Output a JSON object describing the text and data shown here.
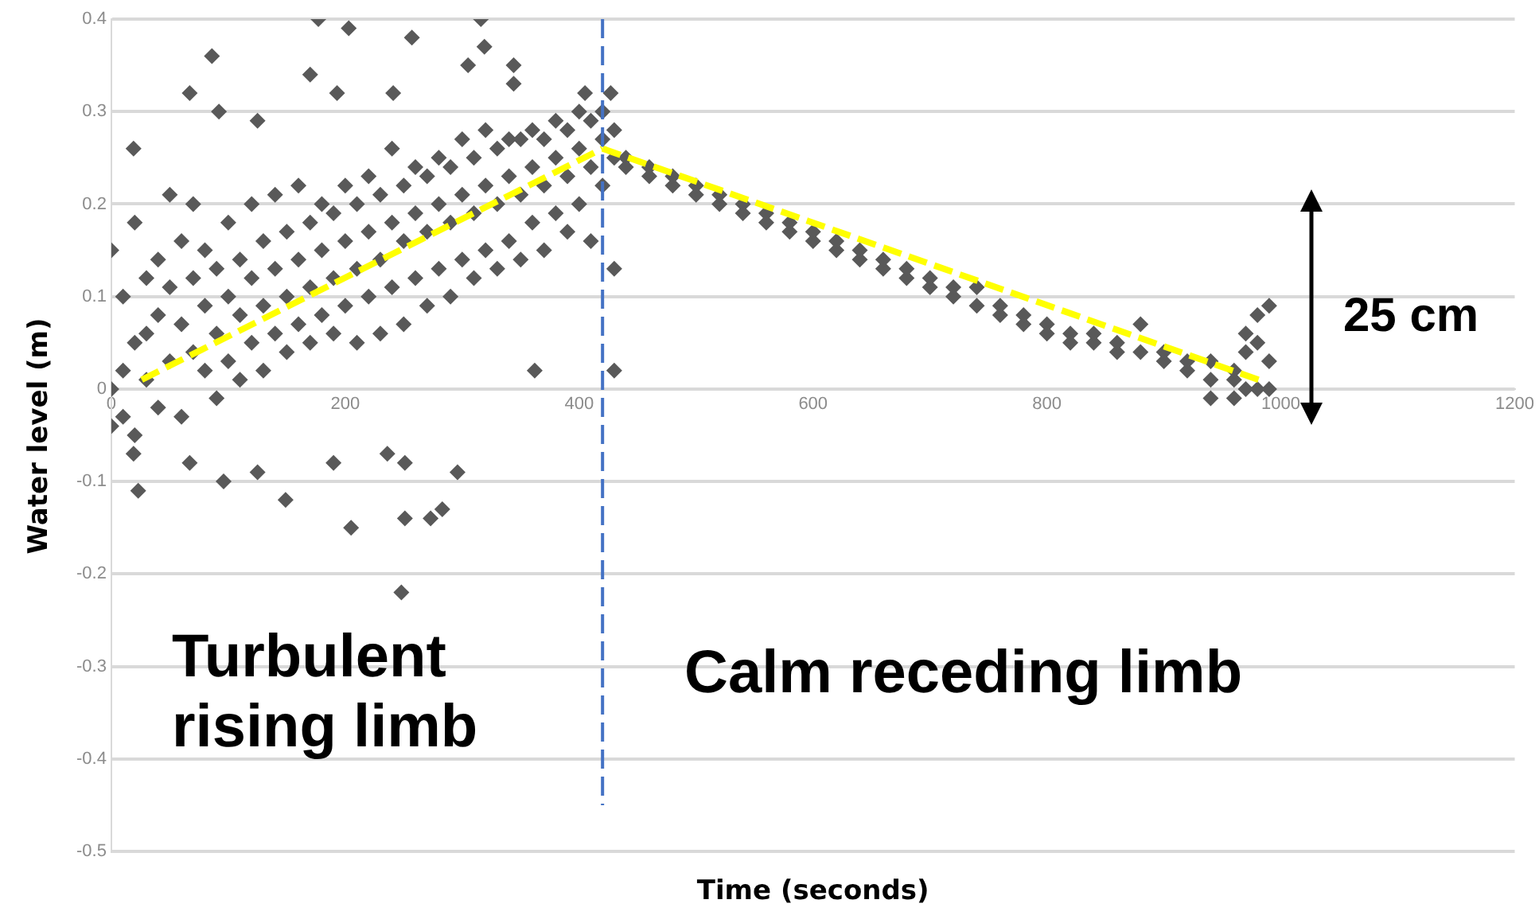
{
  "chart_data": {
    "type": "scatter",
    "xlabel": "Time (seconds)",
    "ylabel": "Water level (m)",
    "xlim": [
      0,
      1200
    ],
    "xticks": [
      0,
      200,
      400,
      600,
      800,
      1000,
      1200
    ],
    "ylim": [
      -0.5,
      0.4
    ],
    "yticks": [
      -0.5,
      -0.4,
      -0.3,
      -0.2,
      -0.1,
      0,
      0.1,
      0.2,
      0.3,
      0.4
    ],
    "grid": "y",
    "legend": false,
    "marker": "diamond",
    "series": [
      {
        "color": "#595959",
        "x": [
          19,
          86,
          67,
          92,
          125,
          177,
          203,
          170,
          257,
          316,
          319,
          305,
          344,
          344,
          241,
          193,
          405,
          427,
          430,
          362,
          19,
          23,
          67,
          96,
          125,
          149,
          190,
          205,
          236,
          251,
          251,
          248,
          273,
          283,
          296,
          0,
          0,
          0,
          10,
          10,
          10,
          20,
          20,
          20,
          30,
          30,
          30,
          40,
          40,
          40,
          50,
          50,
          50,
          60,
          60,
          60,
          70,
          70,
          70,
          80,
          80,
          80,
          90,
          90,
          90,
          100,
          100,
          100,
          110,
          110,
          110,
          120,
          120,
          120,
          130,
          130,
          130,
          140,
          140,
          140,
          150,
          150,
          150,
          160,
          160,
          160,
          170,
          170,
          170,
          180,
          180,
          180,
          190,
          190,
          190,
          200,
          200,
          200,
          210,
          210,
          210,
          220,
          220,
          220,
          230,
          230,
          230,
          240,
          240,
          240,
          250,
          250,
          250,
          260,
          260,
          260,
          270,
          270,
          270,
          280,
          280,
          280,
          290,
          290,
          290,
          300,
          300,
          300,
          310,
          310,
          310,
          320,
          320,
          320,
          330,
          330,
          330,
          340,
          340,
          340,
          350,
          350,
          350,
          360,
          360,
          360,
          370,
          370,
          370,
          380,
          380,
          380,
          390,
          390,
          390,
          400,
          400,
          400,
          410,
          410,
          410,
          420,
          420,
          420,
          430,
          430,
          430,
          440,
          440,
          460,
          460,
          480,
          480,
          500,
          500,
          520,
          520,
          540,
          540,
          560,
          560,
          580,
          580,
          600,
          600,
          620,
          620,
          640,
          640,
          660,
          660,
          680,
          680,
          700,
          700,
          720,
          720,
          740,
          740,
          760,
          760,
          780,
          780,
          800,
          800,
          820,
          820,
          840,
          840,
          860,
          860,
          880,
          880,
          900,
          900,
          920,
          920,
          940,
          940,
          940,
          960,
          960,
          960,
          970,
          970,
          970,
          980,
          980,
          980,
          990,
          990,
          990
        ],
        "values": [
          0.26,
          0.36,
          0.32,
          0.3,
          0.29,
          0.4,
          0.39,
          0.34,
          0.38,
          0.4,
          0.37,
          0.35,
          0.35,
          0.33,
          0.32,
          0.32,
          0.32,
          0.32,
          0.02,
          0.02,
          -0.07,
          -0.11,
          -0.08,
          -0.1,
          -0.09,
          -0.12,
          -0.08,
          -0.15,
          -0.07,
          -0.08,
          -0.14,
          -0.22,
          -0.14,
          -0.13,
          -0.09,
          0.0,
          0.15,
          -0.04,
          0.1,
          0.02,
          -0.03,
          0.05,
          0.18,
          -0.05,
          0.12,
          0.01,
          0.06,
          0.08,
          -0.02,
          0.14,
          0.03,
          0.11,
          0.21,
          0.07,
          0.16,
          -0.03,
          0.04,
          0.12,
          0.2,
          0.09,
          0.02,
          0.15,
          0.06,
          0.13,
          -0.01,
          0.1,
          0.03,
          0.18,
          0.08,
          0.14,
          0.01,
          0.12,
          0.05,
          0.2,
          0.09,
          0.16,
          0.02,
          0.13,
          0.06,
          0.21,
          0.1,
          0.17,
          0.04,
          0.14,
          0.07,
          0.22,
          0.11,
          0.18,
          0.05,
          0.15,
          0.08,
          0.2,
          0.12,
          0.19,
          0.06,
          0.16,
          0.09,
          0.22,
          0.13,
          0.2,
          0.05,
          0.17,
          0.1,
          0.23,
          0.14,
          0.21,
          0.06,
          0.18,
          0.11,
          0.26,
          0.16,
          0.22,
          0.07,
          0.19,
          0.12,
          0.24,
          0.17,
          0.23,
          0.09,
          0.2,
          0.13,
          0.25,
          0.18,
          0.24,
          0.1,
          0.21,
          0.14,
          0.27,
          0.19,
          0.25,
          0.12,
          0.22,
          0.15,
          0.28,
          0.2,
          0.26,
          0.13,
          0.23,
          0.16,
          0.27,
          0.21,
          0.27,
          0.14,
          0.24,
          0.18,
          0.28,
          0.22,
          0.27,
          0.15,
          0.25,
          0.19,
          0.29,
          0.23,
          0.28,
          0.17,
          0.26,
          0.2,
          0.3,
          0.24,
          0.29,
          0.16,
          0.27,
          0.22,
          0.3,
          0.25,
          0.28,
          0.13,
          0.25,
          0.24,
          0.24,
          0.23,
          0.22,
          0.23,
          0.21,
          0.22,
          0.2,
          0.21,
          0.19,
          0.2,
          0.18,
          0.19,
          0.17,
          0.18,
          0.16,
          0.17,
          0.15,
          0.16,
          0.14,
          0.15,
          0.13,
          0.14,
          0.12,
          0.13,
          0.11,
          0.12,
          0.1,
          0.11,
          0.09,
          0.11,
          0.08,
          0.09,
          0.07,
          0.08,
          0.07,
          0.06,
          0.06,
          0.05,
          0.05,
          0.06,
          0.04,
          0.05,
          0.04,
          0.07,
          0.03,
          0.04,
          0.02,
          0.03,
          0.01,
          0.03,
          -0.01,
          0.01,
          0.02,
          -0.01,
          0.06,
          0.04,
          0.0,
          0.08,
          0.05,
          0.0,
          0.09,
          0.03,
          0.0
        ]
      },
      {
        "type": "line",
        "color": "#ffff00",
        "line_style": "dashed",
        "marker": "none",
        "x": [
          26,
          420
        ],
        "values": [
          0.01,
          0.26
        ]
      },
      {
        "type": "line",
        "color": "#ffff00",
        "line_style": "dashed",
        "marker": "none",
        "x": [
          420,
          981
        ],
        "values": [
          0.26,
          0.01
        ]
      }
    ],
    "ref_lines": [
      {
        "axis": "x",
        "value": 420,
        "color": "#4472c4",
        "line_style": "dashed"
      }
    ],
    "annotations": [
      "Turbulent rising limb",
      "Calm receding limb",
      "25 cm"
    ]
  }
}
